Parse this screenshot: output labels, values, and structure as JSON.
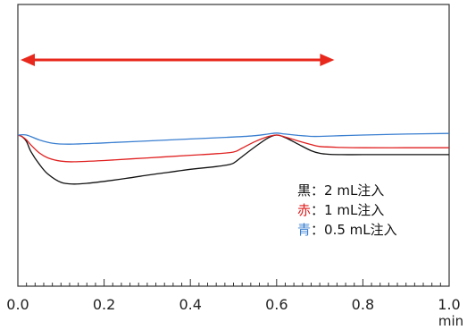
{
  "chart_data": {
    "type": "line",
    "title": "",
    "xlabel": "",
    "ylabel": "",
    "xlim": [
      0.0,
      1.0
    ],
    "x_unit": "min",
    "x_ticks": [
      "0.0",
      "0.2",
      "0.4",
      "0.6",
      "0.8",
      "1.0"
    ],
    "y_axis_labeled": false,
    "grid": false,
    "legend_position": "right-middle",
    "span_arrow": {
      "from": 0.0,
      "to": 0.74,
      "color": "#e8281c"
    },
    "series": [
      {
        "name": "2 mL注入",
        "legend_prefix": "黒",
        "separator": "：",
        "color": "#111111",
        "prefix_color": "#111111",
        "x": [
          0.0,
          0.01,
          0.02,
          0.03,
          0.05,
          0.07,
          0.1,
          0.13,
          0.16,
          0.2,
          0.25,
          0.3,
          0.35,
          0.4,
          0.45,
          0.48,
          0.5,
          0.52,
          0.55,
          0.58,
          0.6,
          0.62,
          0.65,
          0.68,
          0.7,
          0.72,
          0.75,
          0.8,
          0.9,
          1.0
        ],
        "y": [
          0.0,
          -0.5,
          -2.0,
          -5.0,
          -9.0,
          -12.0,
          -14.5,
          -15.0,
          -14.8,
          -14.2,
          -13.3,
          -12.3,
          -11.4,
          -10.5,
          -9.8,
          -9.3,
          -8.6,
          -6.6,
          -3.6,
          -0.9,
          0.0,
          -0.8,
          -2.8,
          -4.8,
          -5.6,
          -5.9,
          -6.0,
          -6.0,
          -6.0,
          -6.0
        ]
      },
      {
        "name": "1 mL注入",
        "legend_prefix": "赤",
        "separator": "：",
        "color": "#e02020",
        "prefix_color": "#e02020",
        "x": [
          0.0,
          0.01,
          0.02,
          0.03,
          0.05,
          0.07,
          0.1,
          0.13,
          0.2,
          0.3,
          0.4,
          0.45,
          0.5,
          0.52,
          0.55,
          0.58,
          0.6,
          0.62,
          0.65,
          0.68,
          0.7,
          0.75,
          0.8,
          0.9,
          1.0
        ],
        "y": [
          0.0,
          -0.5,
          -1.5,
          -3.0,
          -5.5,
          -7.0,
          -8.0,
          -8.2,
          -7.8,
          -7.0,
          -6.2,
          -5.8,
          -5.2,
          -4.0,
          -2.0,
          -0.5,
          0.0,
          -0.6,
          -1.8,
          -2.9,
          -3.5,
          -3.8,
          -3.9,
          -3.9,
          -3.9
        ]
      },
      {
        "name": "0.5 mL注入",
        "legend_prefix": "青",
        "separator": "：",
        "color": "#3a7fd0",
        "prefix_color": "#3a7fd0",
        "x": [
          0.0,
          0.02,
          0.05,
          0.08,
          0.12,
          0.2,
          0.3,
          0.4,
          0.5,
          0.55,
          0.58,
          0.6,
          0.62,
          0.65,
          0.68,
          0.7,
          0.75,
          0.8,
          0.9,
          1.0
        ],
        "y": [
          0.0,
          0.0,
          -1.5,
          -2.5,
          -2.8,
          -2.4,
          -1.8,
          -1.2,
          -0.6,
          -0.2,
          0.3,
          0.6,
          0.3,
          -0.1,
          -0.4,
          -0.4,
          -0.2,
          0.0,
          0.3,
          0.5
        ]
      }
    ]
  }
}
